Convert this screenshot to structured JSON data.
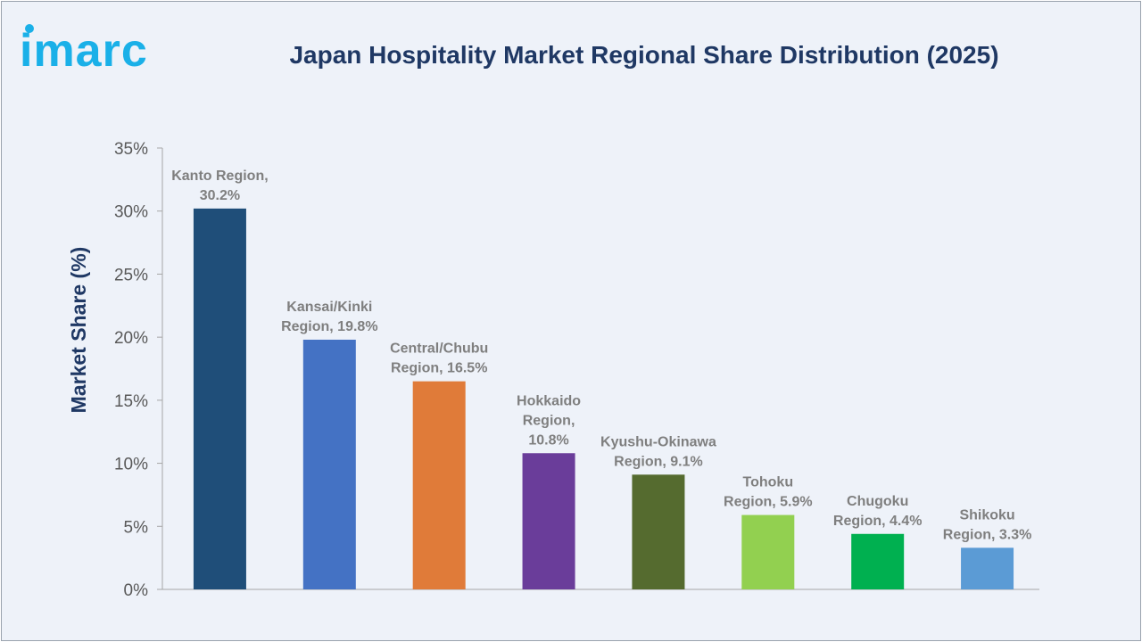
{
  "brand": {
    "logo_text": "imarc",
    "color": "#1ab0e8"
  },
  "chart_data": {
    "type": "bar",
    "title": "Japan Hospitality Market Regional Share Distribution (2025)",
    "ylabel": "Market Share (%)",
    "xlabel": "",
    "ylim": [
      0,
      35
    ],
    "yticks": [
      0,
      5,
      10,
      15,
      20,
      25,
      30,
      35
    ],
    "ytick_labels": [
      "0%",
      "5%",
      "10%",
      "15%",
      "20%",
      "25%",
      "30%",
      "35%"
    ],
    "grid": false,
    "legend": "none",
    "categories": [
      "Kanto Region",
      "Kansai/Kinki Region",
      "Central/Chubu Region",
      "Hokkaido Region",
      "Kyushu-Okinawa Region",
      "Tohoku Region",
      "Chugoku Region",
      "Shikoku Region"
    ],
    "values": [
      30.2,
      19.8,
      16.5,
      10.8,
      9.1,
      5.9,
      4.4,
      3.3
    ],
    "data_labels": [
      [
        "Kanto Region,",
        "30.2%"
      ],
      [
        "Kansai/Kinki",
        "Region, 19.8%"
      ],
      [
        "Central/Chubu",
        "Region, 16.5%"
      ],
      [
        "Hokkaido",
        "Region,",
        "10.8%"
      ],
      [
        "Kyushu-Okinawa",
        "Region, 9.1%"
      ],
      [
        "Tohoku",
        "Region, 5.9%"
      ],
      [
        "Chugoku",
        "Region, 4.4%"
      ],
      [
        "Shikoku",
        "Region, 3.3%"
      ]
    ],
    "colors": [
      "#1f4e79",
      "#4472c4",
      "#e07b39",
      "#6a3d9a",
      "#556b2f",
      "#92d050",
      "#00b050",
      "#5b9bd5"
    ]
  }
}
